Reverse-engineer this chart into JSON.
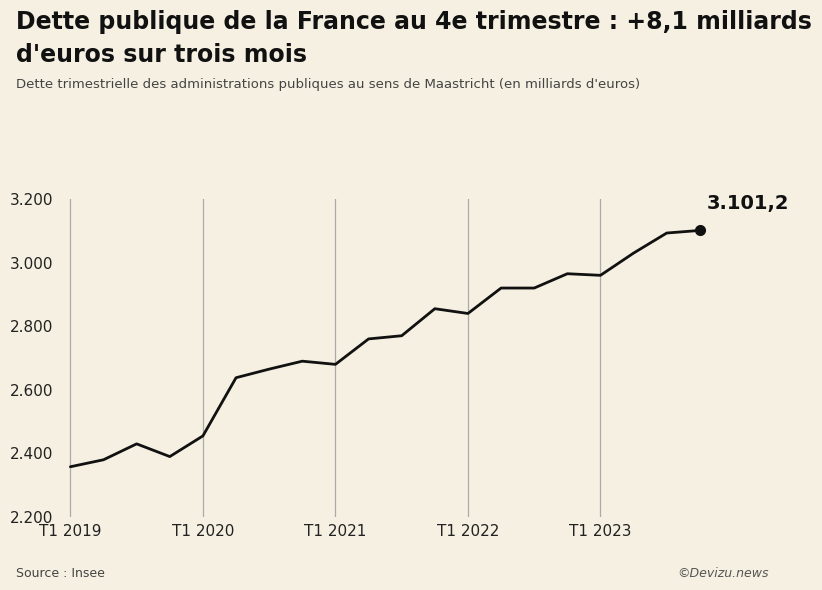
{
  "title_line1": "Dette publique de la France au 4e trimestre : +8,1 milliards",
  "title_line2": "d'euros sur trois mois",
  "subtitle": "Dette trimestrielle des administrations publiques au sens de Maastricht (en milliards d'euros)",
  "source": "Source : Insee",
  "watermark": "©Devizu.news",
  "background_color": "#f5f0e1",
  "line_color": "#111111",
  "vline_color": "#aaaaaa",
  "ylim": [
    2200,
    3200
  ],
  "yticks": [
    2200,
    2400,
    2600,
    2800,
    3000,
    3200
  ],
  "ytick_labels": [
    "2.200",
    "2.400",
    "2.600",
    "2.800",
    "3.000",
    "3.200"
  ],
  "last_value_label": "3.101,2",
  "last_value": 3101.2,
  "vlines_x": [
    0,
    4,
    8,
    12,
    16
  ],
  "xtick_labels": [
    "T1 2019",
    "T1 2020",
    "T1 2021",
    "T1 2022",
    "T1 2023"
  ],
  "values": [
    2358,
    2380,
    2430,
    2390,
    2455,
    2638,
    2665,
    2690,
    2680,
    2760,
    2770,
    2855,
    2840,
    2920,
    2920,
    2965,
    2960,
    3030,
    3093,
    3101.2
  ],
  "title_fontsize": 17,
  "subtitle_fontsize": 9.5,
  "tick_fontsize": 11,
  "annotation_fontsize": 14,
  "source_fontsize": 9
}
